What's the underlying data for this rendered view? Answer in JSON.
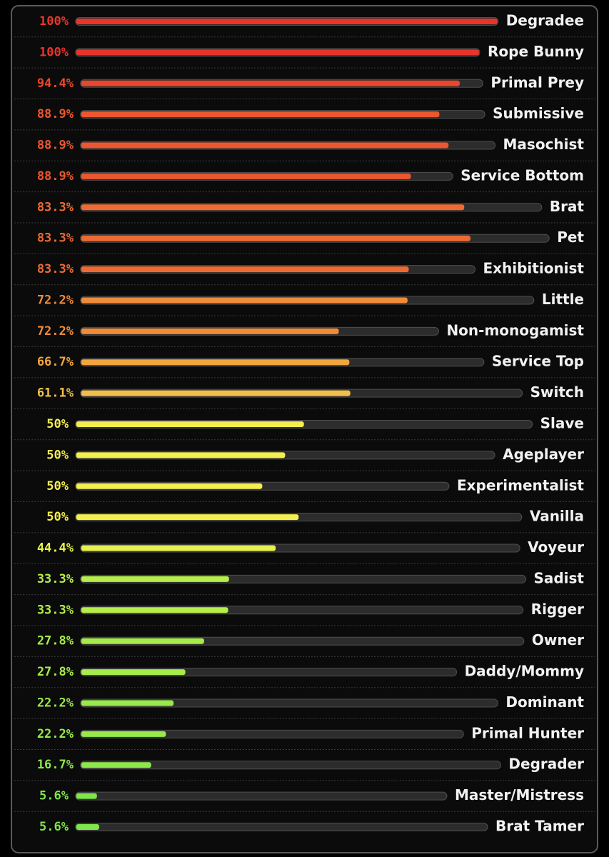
{
  "chart_data": {
    "type": "bar",
    "categories": [
      "Degradee",
      "Rope Bunny",
      "Primal Prey",
      "Submissive",
      "Masochist",
      "Service Bottom",
      "Brat",
      "Pet",
      "Exhibitionist",
      "Little",
      "Non-monogamist",
      "Service Top",
      "Switch",
      "Slave",
      "Ageplayer",
      "Experimentalist",
      "Vanilla",
      "Voyeur",
      "Sadist",
      "Rigger",
      "Owner",
      "Daddy/Mommy",
      "Dominant",
      "Primal Hunter",
      "Degrader",
      "Master/Mistress",
      "Brat Tamer"
    ],
    "values": [
      100,
      100,
      94.4,
      88.9,
      88.9,
      88.9,
      83.3,
      83.3,
      83.3,
      72.2,
      72.2,
      66.7,
      61.1,
      50,
      50,
      50,
      50,
      44.4,
      33.3,
      33.3,
      27.8,
      27.8,
      22.2,
      22.2,
      16.7,
      5.6,
      5.6
    ],
    "value_labels": [
      "100%",
      "100%",
      "94.4%",
      "88.9%",
      "88.9%",
      "88.9%",
      "83.3%",
      "83.3%",
      "83.3%",
      "72.2%",
      "72.2%",
      "66.7%",
      "61.1%",
      "50%",
      "50%",
      "50%",
      "50%",
      "44.4%",
      "33.3%",
      "33.3%",
      "27.8%",
      "27.8%",
      "22.2%",
      "22.2%",
      "16.7%",
      "5.6%",
      "5.6%"
    ],
    "colors": [
      "#e8352b",
      "#e8352b",
      "#ea472d",
      "#ec5730",
      "#ec5730",
      "#ec5730",
      "#ee6a33",
      "#ee6a33",
      "#ee6a33",
      "#f08b3a",
      "#f08b3a",
      "#f2a53e",
      "#f2c04a",
      "#f4ee4e",
      "#f4ee4e",
      "#f4ee4e",
      "#f4ee4e",
      "#e6f24e",
      "#b6ee4a",
      "#b6ee4a",
      "#a6ec4a",
      "#a6ec4a",
      "#98ea4a",
      "#98ea4a",
      "#8ce84a",
      "#7ee64a",
      "#7ee64a"
    ]
  }
}
